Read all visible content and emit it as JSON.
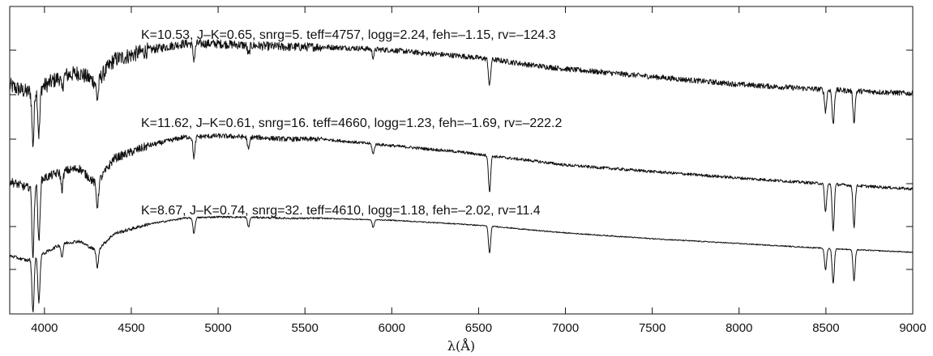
{
  "chart_data": {
    "type": "line",
    "xlabel": "λ(Å)",
    "xlim": [
      3800,
      9000
    ],
    "x_ticks": [
      4000,
      4500,
      5000,
      5500,
      6000,
      6500,
      7000,
      7500,
      8000,
      8500,
      9000
    ],
    "y_ticks_left": 8,
    "y_ticks_right": 8,
    "grid": false,
    "line_color": "#111111",
    "series": [
      {
        "annotation": "K=10.53, J–K=0.65, snrg=5. teff=4757, logg=2.24, feh=–1.15, rv=–124.3",
        "noise": 0.55,
        "points": [
          [
            3800,
            0.3
          ],
          [
            3900,
            0.2
          ],
          [
            4000,
            0.3
          ],
          [
            4100,
            0.45
          ],
          [
            4200,
            0.5
          ],
          [
            4300,
            0.35
          ],
          [
            4400,
            0.7
          ],
          [
            4600,
            0.85
          ],
          [
            4800,
            0.95
          ],
          [
            5000,
            0.95
          ],
          [
            5200,
            0.92
          ],
          [
            5400,
            0.9
          ],
          [
            5600,
            0.9
          ],
          [
            5800,
            0.88
          ],
          [
            6000,
            0.85
          ],
          [
            6200,
            0.8
          ],
          [
            6400,
            0.76
          ],
          [
            6600,
            0.7
          ],
          [
            6800,
            0.62
          ],
          [
            7000,
            0.56
          ],
          [
            7500,
            0.44
          ],
          [
            8000,
            0.32
          ],
          [
            8500,
            0.24
          ],
          [
            9000,
            0.18
          ]
        ]
      },
      {
        "annotation": "K=11.62, J–K=0.61, snrg=16. teff=4660, logg=1.23, feh=–1.69, rv=–222.2",
        "noise": 0.3,
        "points": [
          [
            3800,
            0.2
          ],
          [
            3900,
            0.1
          ],
          [
            4000,
            0.25
          ],
          [
            4100,
            0.35
          ],
          [
            4200,
            0.4
          ],
          [
            4300,
            0.15
          ],
          [
            4400,
            0.55
          ],
          [
            4600,
            0.75
          ],
          [
            4800,
            0.88
          ],
          [
            5000,
            0.9
          ],
          [
            5200,
            0.88
          ],
          [
            5400,
            0.85
          ],
          [
            5600,
            0.85
          ],
          [
            5800,
            0.8
          ],
          [
            6000,
            0.75
          ],
          [
            6200,
            0.7
          ],
          [
            6400,
            0.65
          ],
          [
            6600,
            0.58
          ],
          [
            6800,
            0.52
          ],
          [
            7000,
            0.45
          ],
          [
            7500,
            0.35
          ],
          [
            8000,
            0.25
          ],
          [
            8500,
            0.16
          ],
          [
            9000,
            0.08
          ]
        ]
      },
      {
        "annotation": "K=8.67, J–K=0.74, snrg=32. teff=4610, logg=1.18, feh=–2.02, rv=11.4",
        "noise": 0.15,
        "points": [
          [
            3800,
            0.15
          ],
          [
            3900,
            0.05
          ],
          [
            4000,
            0.2
          ],
          [
            4100,
            0.4
          ],
          [
            4200,
            0.45
          ],
          [
            4300,
            0.25
          ],
          [
            4400,
            0.6
          ],
          [
            4600,
            0.8
          ],
          [
            4800,
            0.92
          ],
          [
            5000,
            0.95
          ],
          [
            5200,
            0.94
          ],
          [
            5400,
            0.92
          ],
          [
            5600,
            0.92
          ],
          [
            5800,
            0.9
          ],
          [
            6000,
            0.88
          ],
          [
            6200,
            0.84
          ],
          [
            6400,
            0.8
          ],
          [
            6600,
            0.75
          ],
          [
            6800,
            0.68
          ],
          [
            7000,
            0.62
          ],
          [
            7500,
            0.5
          ],
          [
            8000,
            0.4
          ],
          [
            8500,
            0.3
          ],
          [
            9000,
            0.22
          ]
        ]
      }
    ],
    "absorption_lines": [
      {
        "x": 3934,
        "depth": 1.4
      },
      {
        "x": 3968,
        "depth": 1.2
      },
      {
        "x": 4101,
        "depth": 0.35
      },
      {
        "x": 4305,
        "depth": 0.45
      },
      {
        "x": 4861,
        "depth": 0.4
      },
      {
        "x": 5175,
        "depth": 0.25
      },
      {
        "x": 5893,
        "depth": 0.2
      },
      {
        "x": 6563,
        "depth": 0.7
      },
      {
        "x": 8498,
        "depth": 0.55
      },
      {
        "x": 8542,
        "depth": 0.9
      },
      {
        "x": 8662,
        "depth": 0.8
      }
    ]
  }
}
